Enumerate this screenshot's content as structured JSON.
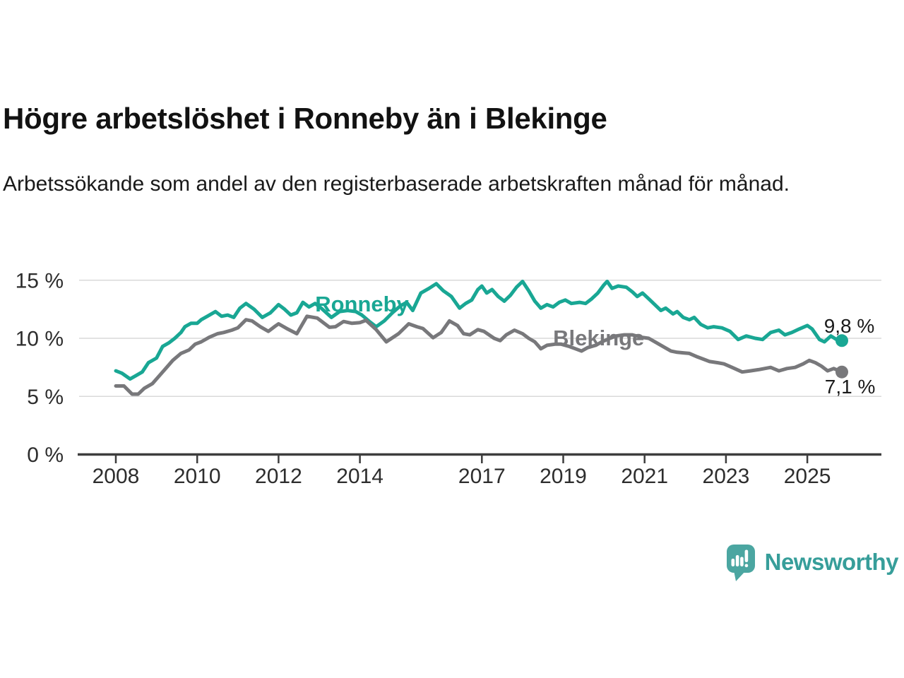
{
  "header": {
    "title": "Högre arbetslöshet i Ronneby än i Blekinge",
    "subtitle": "Arbetssökande som andel av den registerbaserade arbetskraften månad för månad."
  },
  "footer": {
    "brand": "Newsworthy",
    "brand_text_color": "#379e9a",
    "icon": "newsworthy-speech-bubble-bar-chart-icon",
    "icon_color": "#4ba6a1"
  },
  "chart_data": {
    "type": "line",
    "title": "Högre arbetslöshet i Ronneby än i Blekinge",
    "subtitle": "Arbetssökande som andel av den registerbaserade arbetskraften månad för månad.",
    "grid": "horizontal-only",
    "legend": "inline-series-labels",
    "xlim": [
      2007.097,
      2026.822
    ],
    "ylim": [
      0,
      16.63
    ],
    "x_ticks": [
      {
        "year": 2008,
        "label": "2008"
      },
      {
        "year": 2010,
        "label": "2010"
      },
      {
        "year": 2012,
        "label": "2012"
      },
      {
        "year": 2014,
        "label": "2014"
      },
      {
        "year": 2017,
        "label": "2017"
      },
      {
        "year": 2019,
        "label": "2019"
      },
      {
        "year": 2021,
        "label": "2021"
      },
      {
        "year": 2023,
        "label": "2023"
      },
      {
        "year": 2025,
        "label": "2025"
      }
    ],
    "y_ticks": [
      {
        "value": 0,
        "label": "0 %"
      },
      {
        "value": 5,
        "label": "5 %"
      },
      {
        "value": 10,
        "label": "10 %"
      },
      {
        "value": 15,
        "label": "15 %"
      }
    ],
    "series": [
      {
        "name": "Ronneby",
        "color": "#19a794",
        "end_label": "9,8 %",
        "end_value": 9.8,
        "points": [
          [
            2008.0,
            7.2
          ],
          [
            2008.15,
            7.0
          ],
          [
            2008.35,
            6.5
          ],
          [
            2008.5,
            6.8
          ],
          [
            2008.65,
            7.1
          ],
          [
            2008.8,
            7.9
          ],
          [
            2009.0,
            8.3
          ],
          [
            2009.15,
            9.3
          ],
          [
            2009.3,
            9.6
          ],
          [
            2009.45,
            10.0
          ],
          [
            2009.6,
            10.5
          ],
          [
            2009.7,
            11.0
          ],
          [
            2009.85,
            11.3
          ],
          [
            2010.0,
            11.3
          ],
          [
            2010.1,
            11.6
          ],
          [
            2010.25,
            11.9
          ],
          [
            2010.45,
            12.3
          ],
          [
            2010.6,
            11.9
          ],
          [
            2010.75,
            12.0
          ],
          [
            2010.9,
            11.8
          ],
          [
            2011.05,
            12.6
          ],
          [
            2011.2,
            13.0
          ],
          [
            2011.4,
            12.5
          ],
          [
            2011.6,
            11.8
          ],
          [
            2011.8,
            12.2
          ],
          [
            2012.0,
            12.9
          ],
          [
            2012.15,
            12.5
          ],
          [
            2012.3,
            12.0
          ],
          [
            2012.45,
            12.2
          ],
          [
            2012.6,
            13.1
          ],
          [
            2012.75,
            12.7
          ],
          [
            2012.9,
            13.0
          ],
          [
            2013.05,
            12.6
          ],
          [
            2013.3,
            11.8
          ],
          [
            2013.5,
            12.3
          ],
          [
            2013.7,
            12.4
          ],
          [
            2013.9,
            12.3
          ],
          [
            2014.05,
            12.0
          ],
          [
            2014.25,
            11.4
          ],
          [
            2014.4,
            11.0
          ],
          [
            2014.6,
            11.5
          ],
          [
            2014.8,
            12.2
          ],
          [
            2015.0,
            12.8
          ],
          [
            2015.15,
            13.1
          ],
          [
            2015.3,
            12.4
          ],
          [
            2015.5,
            13.9
          ],
          [
            2015.7,
            14.3
          ],
          [
            2015.88,
            14.7
          ],
          [
            2016.05,
            14.1
          ],
          [
            2016.25,
            13.6
          ],
          [
            2016.45,
            12.6
          ],
          [
            2016.6,
            13.0
          ],
          [
            2016.75,
            13.3
          ],
          [
            2016.9,
            14.2
          ],
          [
            2017.0,
            14.5
          ],
          [
            2017.12,
            13.9
          ],
          [
            2017.25,
            14.2
          ],
          [
            2017.4,
            13.6
          ],
          [
            2017.55,
            13.2
          ],
          [
            2017.7,
            13.7
          ],
          [
            2017.85,
            14.4
          ],
          [
            2018.0,
            14.9
          ],
          [
            2018.15,
            14.1
          ],
          [
            2018.3,
            13.2
          ],
          [
            2018.45,
            12.6
          ],
          [
            2018.6,
            12.9
          ],
          [
            2018.75,
            12.7
          ],
          [
            2018.9,
            13.1
          ],
          [
            2019.05,
            13.3
          ],
          [
            2019.2,
            13.0
          ],
          [
            2019.4,
            13.1
          ],
          [
            2019.55,
            13.0
          ],
          [
            2019.7,
            13.4
          ],
          [
            2019.85,
            13.9
          ],
          [
            2020.0,
            14.6
          ],
          [
            2020.08,
            14.9
          ],
          [
            2020.2,
            14.3
          ],
          [
            2020.35,
            14.5
          ],
          [
            2020.55,
            14.4
          ],
          [
            2020.7,
            14.0
          ],
          [
            2020.82,
            13.6
          ],
          [
            2020.95,
            13.9
          ],
          [
            2021.1,
            13.4
          ],
          [
            2021.25,
            12.9
          ],
          [
            2021.4,
            12.4
          ],
          [
            2021.52,
            12.6
          ],
          [
            2021.7,
            12.1
          ],
          [
            2021.8,
            12.3
          ],
          [
            2021.95,
            11.8
          ],
          [
            2022.1,
            11.6
          ],
          [
            2022.22,
            11.8
          ],
          [
            2022.38,
            11.2
          ],
          [
            2022.55,
            10.9
          ],
          [
            2022.7,
            11.0
          ],
          [
            2022.9,
            10.9
          ],
          [
            2023.1,
            10.6
          ],
          [
            2023.3,
            9.9
          ],
          [
            2023.5,
            10.2
          ],
          [
            2023.72,
            10.0
          ],
          [
            2023.9,
            9.9
          ],
          [
            2024.1,
            10.5
          ],
          [
            2024.3,
            10.7
          ],
          [
            2024.45,
            10.3
          ],
          [
            2024.62,
            10.5
          ],
          [
            2024.8,
            10.8
          ],
          [
            2025.0,
            11.1
          ],
          [
            2025.12,
            10.8
          ],
          [
            2025.3,
            9.9
          ],
          [
            2025.42,
            9.7
          ],
          [
            2025.58,
            10.2
          ],
          [
            2025.72,
            9.9
          ],
          [
            2025.85,
            9.8
          ]
        ]
      },
      {
        "name": "Blekinge",
        "color": "#78787b",
        "end_label": "7,1 %",
        "end_value": 7.1,
        "points": [
          [
            2008.0,
            5.9
          ],
          [
            2008.2,
            5.9
          ],
          [
            2008.4,
            5.2
          ],
          [
            2008.55,
            5.2
          ],
          [
            2008.7,
            5.7
          ],
          [
            2008.9,
            6.1
          ],
          [
            2009.1,
            6.9
          ],
          [
            2009.25,
            7.5
          ],
          [
            2009.4,
            8.1
          ],
          [
            2009.6,
            8.7
          ],
          [
            2009.8,
            9.0
          ],
          [
            2009.95,
            9.5
          ],
          [
            2010.1,
            9.7
          ],
          [
            2010.3,
            10.1
          ],
          [
            2010.5,
            10.4
          ],
          [
            2010.65,
            10.5
          ],
          [
            2010.85,
            10.7
          ],
          [
            2011.0,
            10.9
          ],
          [
            2011.2,
            11.6
          ],
          [
            2011.35,
            11.5
          ],
          [
            2011.55,
            11.0
          ],
          [
            2011.75,
            10.6
          ],
          [
            2011.9,
            11.0
          ],
          [
            2012.0,
            11.25
          ],
          [
            2012.2,
            10.85
          ],
          [
            2012.45,
            10.4
          ],
          [
            2012.7,
            11.9
          ],
          [
            2012.95,
            11.75
          ],
          [
            2013.25,
            10.95
          ],
          [
            2013.4,
            11.0
          ],
          [
            2013.6,
            11.45
          ],
          [
            2013.8,
            11.3
          ],
          [
            2014.0,
            11.35
          ],
          [
            2014.15,
            11.55
          ],
          [
            2014.4,
            10.75
          ],
          [
            2014.65,
            9.7
          ],
          [
            2014.95,
            10.4
          ],
          [
            2015.2,
            11.25
          ],
          [
            2015.4,
            11.0
          ],
          [
            2015.55,
            10.85
          ],
          [
            2015.8,
            10.05
          ],
          [
            2016.0,
            10.5
          ],
          [
            2016.2,
            11.5
          ],
          [
            2016.4,
            11.1
          ],
          [
            2016.55,
            10.4
          ],
          [
            2016.7,
            10.3
          ],
          [
            2016.9,
            10.75
          ],
          [
            2017.05,
            10.6
          ],
          [
            2017.3,
            10.0
          ],
          [
            2017.45,
            9.8
          ],
          [
            2017.6,
            10.3
          ],
          [
            2017.8,
            10.7
          ],
          [
            2018.0,
            10.4
          ],
          [
            2018.15,
            10.0
          ],
          [
            2018.3,
            9.7
          ],
          [
            2018.45,
            9.1
          ],
          [
            2018.6,
            9.4
          ],
          [
            2018.8,
            9.5
          ],
          [
            2018.95,
            9.5
          ],
          [
            2019.15,
            9.3
          ],
          [
            2019.3,
            9.1
          ],
          [
            2019.45,
            8.9
          ],
          [
            2019.6,
            9.2
          ],
          [
            2019.8,
            9.4
          ],
          [
            2019.95,
            9.7
          ],
          [
            2020.15,
            10.0
          ],
          [
            2020.3,
            10.2
          ],
          [
            2020.5,
            10.3
          ],
          [
            2020.7,
            10.3
          ],
          [
            2020.9,
            10.1
          ],
          [
            2021.1,
            10.0
          ],
          [
            2021.3,
            9.6
          ],
          [
            2021.5,
            9.2
          ],
          [
            2021.65,
            8.9
          ],
          [
            2021.8,
            8.8
          ],
          [
            2021.95,
            8.75
          ],
          [
            2022.1,
            8.7
          ],
          [
            2022.3,
            8.4
          ],
          [
            2022.45,
            8.2
          ],
          [
            2022.6,
            8.0
          ],
          [
            2022.8,
            7.9
          ],
          [
            2022.95,
            7.8
          ],
          [
            2023.15,
            7.5
          ],
          [
            2023.4,
            7.1
          ],
          [
            2023.6,
            7.2
          ],
          [
            2023.8,
            7.3
          ],
          [
            2023.95,
            7.4
          ],
          [
            2024.1,
            7.5
          ],
          [
            2024.3,
            7.2
          ],
          [
            2024.5,
            7.4
          ],
          [
            2024.7,
            7.5
          ],
          [
            2024.9,
            7.8
          ],
          [
            2025.05,
            8.1
          ],
          [
            2025.2,
            7.9
          ],
          [
            2025.35,
            7.6
          ],
          [
            2025.5,
            7.2
          ],
          [
            2025.65,
            7.4
          ],
          [
            2025.85,
            7.1
          ]
        ]
      }
    ],
    "annotations": [
      {
        "kind": "series-label",
        "text": "Ronneby",
        "x": 2012.9,
        "y": 12.31,
        "color": "#19a794"
      },
      {
        "kind": "series-label",
        "text": "Blekinge",
        "x": 2018.75,
        "y": 9.39,
        "color": "#78787b"
      },
      {
        "kind": "value-label",
        "text": "9,8 %",
        "x": 2025.41,
        "y": 10.49,
        "color": "#1a1a1a"
      },
      {
        "kind": "value-label",
        "text": "7,1 %",
        "x": 2025.43,
        "y": 5.26,
        "color": "#1a1a1a"
      }
    ],
    "style": {
      "gridline_color": "#d9d9d9",
      "axis_color": "#3d3d3d",
      "tick_label_color": "#2d2d2d",
      "line_width": 5
    }
  }
}
